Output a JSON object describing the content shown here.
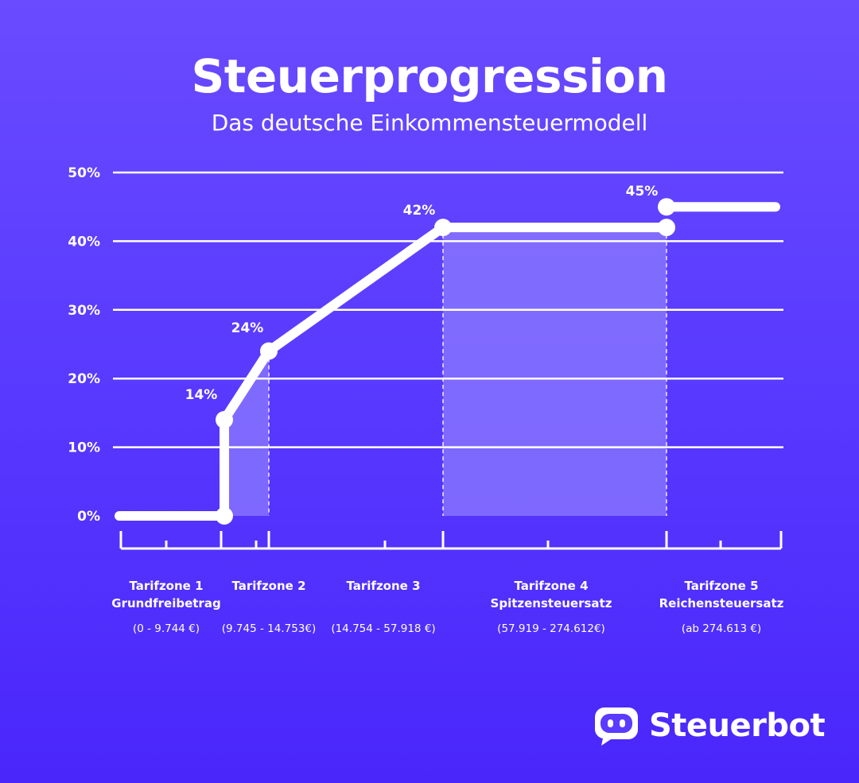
{
  "title": "Steuerprogression",
  "subtitle": "Das deutsche Einkommensteuermodell",
  "brand": {
    "name": "Steuerbot",
    "icon": "robot-head-icon"
  },
  "colors": {
    "background_top": "#6a4bff",
    "background_bottom": "#4a26fb",
    "line": "#ffffff",
    "zone_fill": "#8c7bff"
  },
  "chart_data": {
    "type": "line",
    "title": "Steuerprogression",
    "xlabel": "",
    "ylabel": "",
    "ylim": [
      0,
      50
    ],
    "yticks": [
      "0%",
      "10%",
      "20%",
      "30%",
      "40%",
      "50%"
    ],
    "grid": true,
    "legend": "none",
    "zones": [
      {
        "name": "Tarifzone 1",
        "subname": "Grundfreibetrag",
        "range": "(0 - 9.744 €)",
        "from": 0,
        "to": 9744
      },
      {
        "name": "Tarifzone 2",
        "subname": "",
        "range": "(9.745 - 14.753€)",
        "from": 9745,
        "to": 14753
      },
      {
        "name": "Tarifzone 3",
        "subname": "",
        "range": "(14.754 - 57.918 €)",
        "from": 14754,
        "to": 57918
      },
      {
        "name": "Tarifzone 4",
        "subname": "Spitzensteuersatz",
        "range": "(57.919 - 274.612€)",
        "from": 57919,
        "to": 274612
      },
      {
        "name": "Tarifzone 5",
        "subname": "Reichensteuersatz",
        "range": "(ab 274.613 €)",
        "from": 274613,
        "to": null
      }
    ],
    "series": [
      {
        "points": [
          {
            "income": 0,
            "rate": 0
          },
          {
            "income": 9744,
            "rate": 0,
            "marker": true
          },
          {
            "income": 9745,
            "rate": 14,
            "marker": true,
            "label": "14%"
          },
          {
            "income": 14753,
            "rate": 24,
            "marker": true,
            "label": "24%"
          },
          {
            "income": 57918,
            "rate": 42,
            "marker": true,
            "label": "42%"
          },
          {
            "income": 274612,
            "rate": 42,
            "marker": true
          },
          {
            "income": 274613,
            "rate": 45,
            "marker": true,
            "label": "45%"
          },
          {
            "income": 300000,
            "rate": 45
          }
        ]
      }
    ]
  }
}
